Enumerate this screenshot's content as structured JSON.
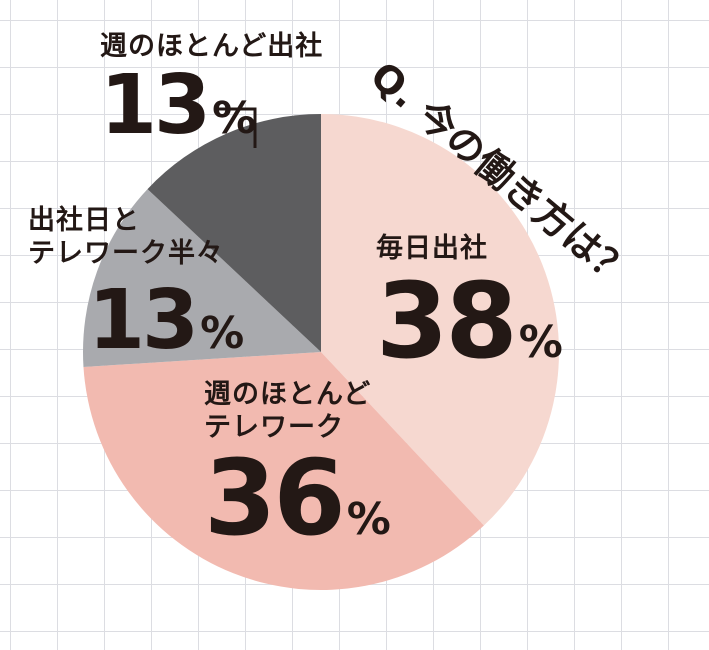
{
  "title": "Q. 今の働き方は？",
  "chart_data": {
    "type": "pie",
    "title": "Q. 今の働き方は？",
    "categories": [
      "毎日出社",
      "週のほとんどテレワーク",
      "出社日とテレワーク半々",
      "週のほとんど出社"
    ],
    "values": [
      38,
      36,
      13,
      13
    ],
    "unit": "%",
    "colors": [
      "#f6d8d0",
      "#f2bab0",
      "#a9aaae",
      "#5d5d5f"
    ]
  },
  "slices": [
    {
      "label_lines": [
        "毎日出社"
      ],
      "value": "38",
      "unit": "%"
    },
    {
      "label_lines": [
        "週のほとんど",
        "テレワーク"
      ],
      "value": "36",
      "unit": "%"
    },
    {
      "label_lines": [
        "出社日と",
        "テレワーク半々"
      ],
      "value": "13",
      "unit": "%"
    },
    {
      "label_lines": [
        "週のほとんど出社"
      ],
      "value": "13",
      "unit": "%"
    }
  ]
}
